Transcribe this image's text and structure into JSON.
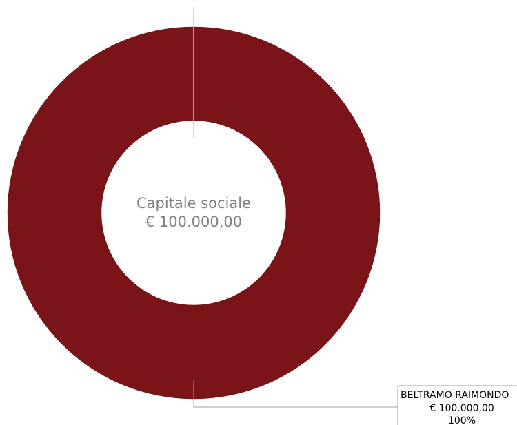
{
  "chart_data": {
    "type": "pie",
    "variant": "donut",
    "center_label": "Capitale sociale",
    "center_value": "€ 100.000,00",
    "slices": [
      {
        "name": "BELTRAMO RAIMONDO",
        "value": 100000,
        "value_label": "€ 100.000,00",
        "percent_label": "100%",
        "percent": 100,
        "color": "#7b1418"
      }
    ],
    "legend": "callout-bottom-right",
    "grid": false
  }
}
